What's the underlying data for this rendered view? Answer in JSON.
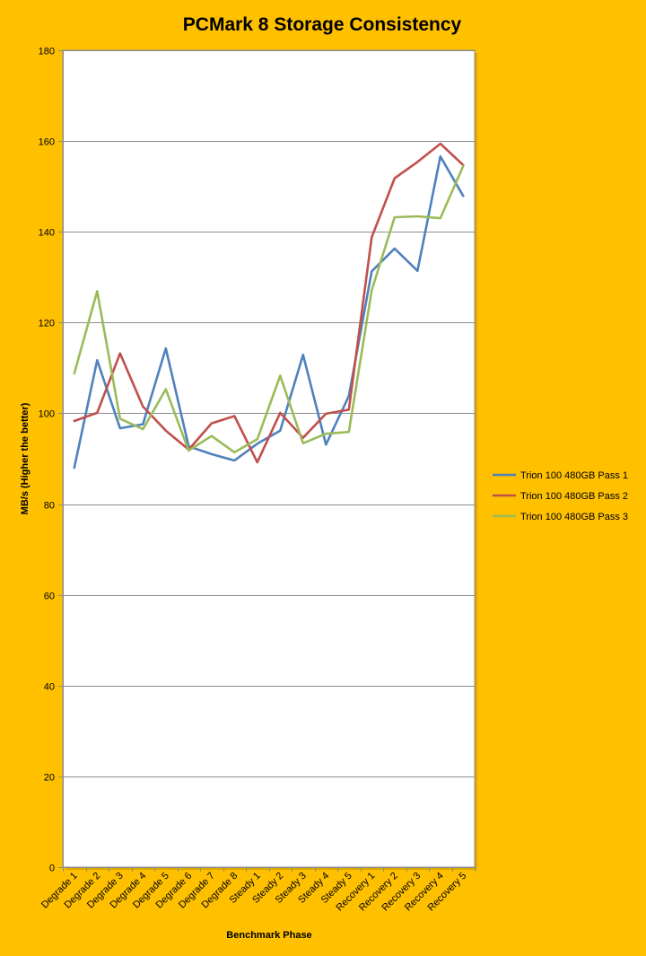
{
  "chart_data": {
    "type": "line",
    "title": "PCMark 8 Storage Consistency",
    "xlabel": "Benchmark Phase",
    "ylabel": "MB/s (Higher the better)",
    "ylim": [
      0,
      180
    ],
    "yticks": [
      0,
      20,
      40,
      60,
      80,
      100,
      120,
      140,
      160,
      180
    ],
    "grid": true,
    "legend_position": "right",
    "categories": [
      "Degrade 1",
      "Degrade 2",
      "Degrade 3",
      "Degrade 4",
      "Degrade 5",
      "Degrade 6",
      "Degrade 7",
      "Degrade 8",
      "Steady 1",
      "Steady 2",
      "Steady 3",
      "Steady 4",
      "Steady 5",
      "Recovery 1",
      "Recovery 2",
      "Recovery 3",
      "Recovery 4",
      "Recovery 5"
    ],
    "series": [
      {
        "name": "Trion 100 480GB Pass 1",
        "color": "#4f81bd",
        "values": [
          88.0,
          111.7,
          96.7,
          97.6,
          114.3,
          92.7,
          91.0,
          89.6,
          93.3,
          96.2,
          112.9,
          93.1,
          103.8,
          131.3,
          136.3,
          131.4,
          156.6,
          147.9
        ]
      },
      {
        "name": "Trion 100 480GB Pass 2",
        "color": "#c0504d",
        "values": [
          98.3,
          100.1,
          113.2,
          101.5,
          96.2,
          92.0,
          97.8,
          99.4,
          89.2,
          100.1,
          94.6,
          99.9,
          100.8,
          138.8,
          151.8,
          155.4,
          159.4,
          154.7
        ]
      },
      {
        "name": "Trion 100 480GB Pass 3",
        "color": "#9bbb59",
        "values": [
          108.8,
          126.9,
          98.8,
          96.5,
          105.3,
          91.8,
          95.0,
          91.4,
          94.3,
          108.3,
          93.4,
          95.5,
          95.9,
          127.1,
          143.2,
          143.4,
          143.0,
          154.5
        ]
      }
    ]
  }
}
